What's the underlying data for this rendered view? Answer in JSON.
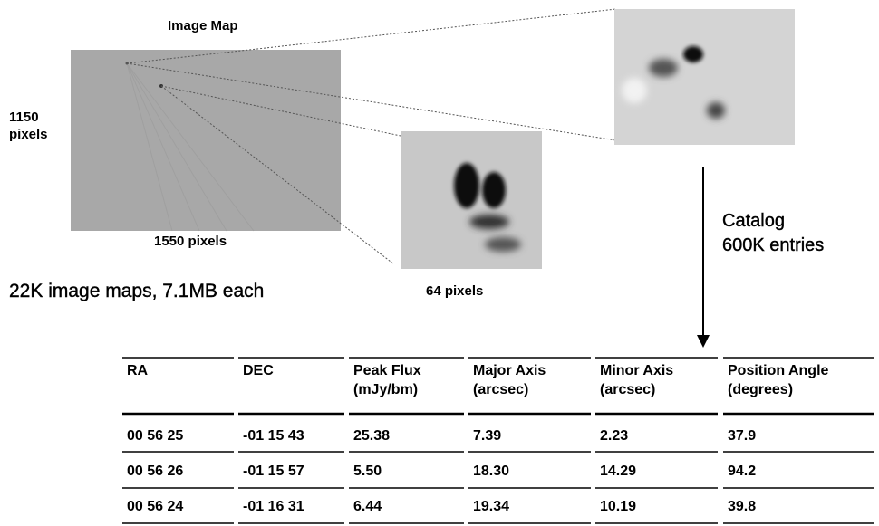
{
  "image_map": {
    "title": "Image Map",
    "height_label": [
      "1150",
      "pixels"
    ],
    "width_label": "1550 pixels",
    "caption": "22K image maps, 7.1MB each"
  },
  "zoom": {
    "caption": "64 pixels"
  },
  "catalog": {
    "label": [
      "Catalog",
      "600K entries"
    ]
  },
  "table": {
    "header": [
      [
        "RA"
      ],
      [
        "DEC"
      ],
      [
        "Peak Flux",
        "(mJy/bm)"
      ],
      [
        "Major Axis",
        "(arcsec)"
      ],
      [
        "Minor Axis",
        "(arcsec)"
      ],
      [
        "Position Angle",
        "(degrees)"
      ]
    ],
    "rows": [
      [
        "00 56 25",
        "-01 15 43",
        "25.38",
        "7.39",
        "2.23",
        "37.9"
      ],
      [
        "00 56 26",
        "-01 15 57",
        "5.50",
        "18.30",
        "14.29",
        "94.2"
      ],
      [
        "00 56 24",
        "-01 16 31",
        "6.44",
        "19.34",
        "10.19",
        "39.8"
      ]
    ]
  }
}
